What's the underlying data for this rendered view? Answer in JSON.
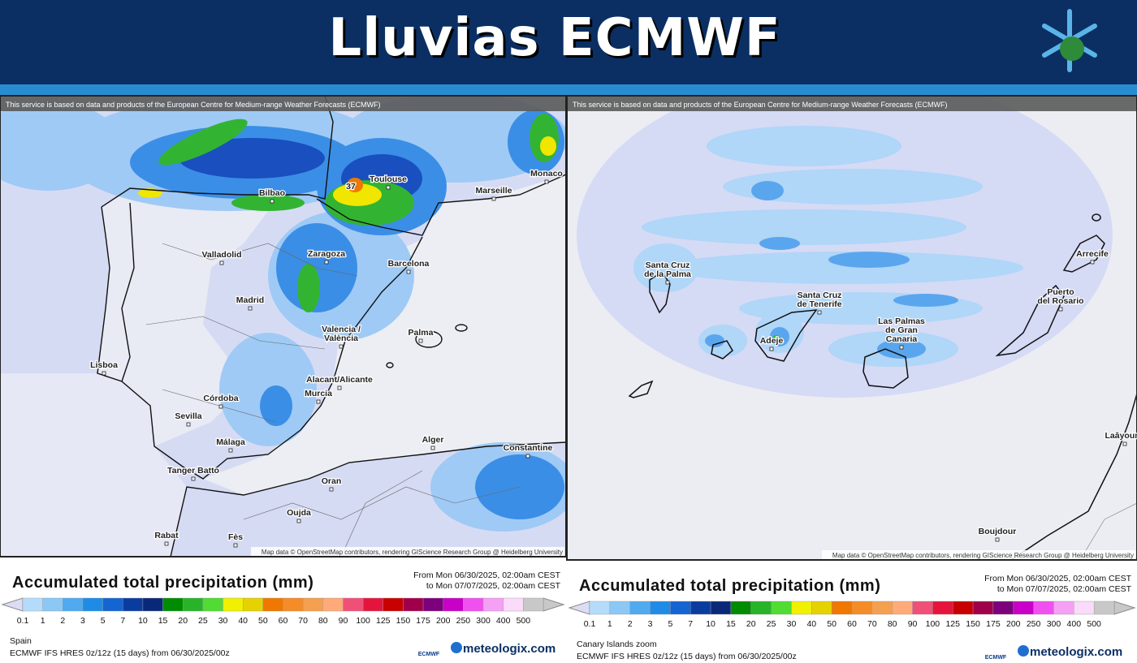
{
  "header": {
    "title": "Lluvias ECMWF"
  },
  "panels": [
    {
      "attribution": "This service is based on data and products of the European Centre for Medium-range Weather Forecasts (ECMWF)",
      "map_credit": "Map data © OpenStreetMap contributors, rendering GIScience Research Group @ Heidelberg University",
      "peak": "37",
      "places": [
        [
          "Toulouse"
        ],
        [
          "Bilbao"
        ],
        [
          "Marseille"
        ],
        [
          "Monaco"
        ],
        [
          "Valladolid"
        ],
        [
          "Zaragoza"
        ],
        [
          "Barcelona"
        ],
        [
          "Madrid"
        ],
        [
          "Valencia /",
          "València"
        ],
        [
          "Palma"
        ],
        [
          "Lisboa"
        ],
        [
          "Alacant/Alicante"
        ],
        [
          "Murcia"
        ],
        [
          "Córdoba"
        ],
        [
          "Sevilla"
        ],
        [
          "Málaga"
        ],
        [
          "Tanger Batto"
        ],
        [
          "Alger"
        ],
        [
          "Constantine"
        ],
        [
          "Oran"
        ],
        [
          "Oujda"
        ],
        [
          "Rabat"
        ],
        [
          "Fès"
        ]
      ],
      "legend_title": "Accumulated total precipitation (mm)",
      "period": [
        "From Mon 06/30/2025, 02:00am CEST",
        "to Mon 07/07/2025, 02:00am CEST"
      ],
      "scale": [
        0.1,
        1,
        2,
        3,
        5,
        7,
        10,
        15,
        20,
        25,
        30,
        40,
        50,
        60,
        70,
        80,
        90,
        100,
        125,
        150,
        175,
        200,
        250,
        300,
        400,
        500
      ],
      "region": "Spain",
      "model": "ECMWF IFS HRES 0z/12z (15 days) from 06/30/2025/00z"
    },
    {
      "attribution": "This service is based on data and products of the European Centre for Medium-range Weather Forecasts (ECMWF)",
      "map_credit": "Map data © OpenStreetMap contributors, rendering GIScience Research Group @ Heidelberg University",
      "places": [
        [
          "Santa Cruz",
          "de la Palma"
        ],
        [
          "Santa Cruz",
          "de Tenerife"
        ],
        [
          "Adeje"
        ],
        [
          "Las Palmas",
          "de Gran",
          "Canaria"
        ],
        [
          "Puerto",
          "del Rosario"
        ],
        [
          "Arrecife"
        ],
        [
          "Boujdour"
        ],
        [
          "Laâyoune"
        ]
      ],
      "legend_title": "Accumulated total precipitation (mm)",
      "period": [
        "From Mon 06/30/2025, 02:00am CEST",
        "to Mon 07/07/2025, 02:00am CEST"
      ],
      "scale": [
        0.1,
        1,
        2,
        3,
        5,
        7,
        10,
        15,
        20,
        25,
        30,
        40,
        50,
        60,
        70,
        80,
        90,
        100,
        125,
        150,
        175,
        200,
        250,
        300,
        400,
        500
      ],
      "region": "Canary Islands zoom",
      "model": "ECMWF IFS HRES 0z/12z (15 days) from 06/30/2025/00z"
    }
  ],
  "brand": {
    "ecmwf": "ECMWF",
    "site": "meteologix.com"
  }
}
